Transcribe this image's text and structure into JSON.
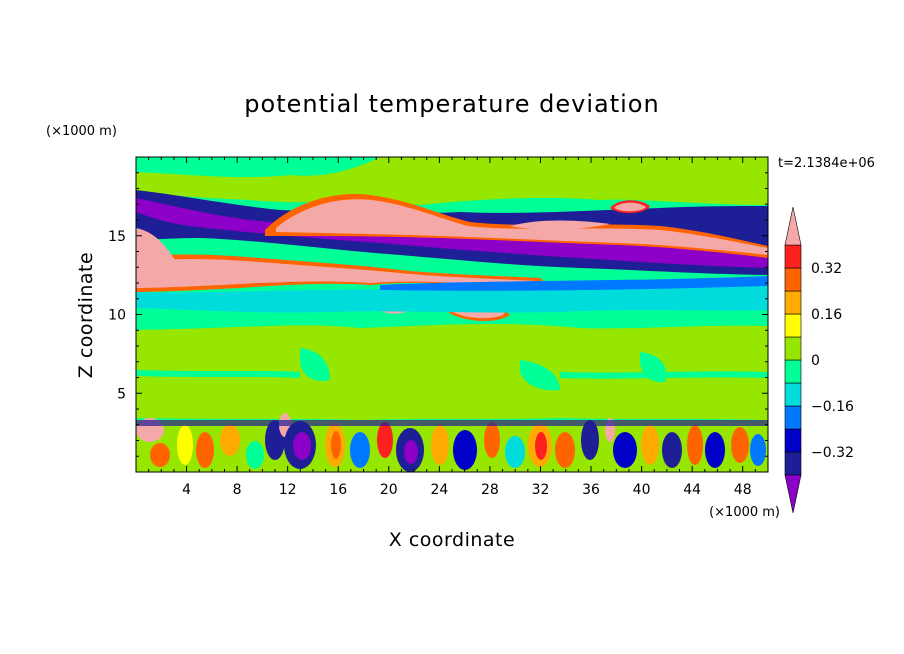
{
  "chart_data": {
    "type": "heatmap",
    "title": "potential temperature deviation",
    "xlabel": "X coordinate",
    "ylabel": "Z coordinate",
    "x_unit": "(×1000 m)",
    "y_unit": "(×1000 m)",
    "timestamp": "t=2.1384e+06",
    "xlim": [
      0,
      50
    ],
    "ylim": [
      0,
      20
    ],
    "x_ticks": [
      4,
      8,
      12,
      16,
      20,
      24,
      28,
      32,
      36,
      40,
      44,
      48
    ],
    "y_ticks": [
      5,
      10,
      15
    ],
    "colorbar": {
      "levels": [
        -0.4,
        -0.32,
        -0.24,
        -0.16,
        -0.08,
        0,
        0.08,
        0.16,
        0.24,
        0.32,
        0.4
      ],
      "tick_labels": [
        "0.32",
        "0.16",
        "0",
        "−0.16",
        "−0.32"
      ],
      "tick_values": [
        0.32,
        0.16,
        0,
        -0.16,
        -0.32
      ],
      "colors_low_to_high": [
        "#1e1e96",
        "#0000c8",
        "#0078ff",
        "#00dcdc",
        "#00ff96",
        "#96e600",
        "#ffff00",
        "#ffaa00",
        "#ff6400",
        "#ff2020"
      ],
      "below_color": "#8c00c8",
      "above_color": "#f5a8a8"
    },
    "bands": [
      {
        "z": [
          17.5,
          19.5
        ],
        "value": 0.02
      },
      {
        "z": [
          16.3,
          17.5
        ],
        "value": -0.36
      },
      {
        "z": [
          15.0,
          16.3
        ],
        "value": -0.44
      },
      {
        "z": [
          13.5,
          15.0
        ],
        "value": 0.42
      },
      {
        "z": [
          12.3,
          13.5
        ],
        "value": -0.3
      },
      {
        "z": [
          11.0,
          12.3
        ],
        "value": -0.12
      },
      {
        "z": [
          10.0,
          11.0
        ],
        "value": -0.02
      },
      {
        "z": [
          6.5,
          10.0
        ],
        "value": 0.04
      },
      {
        "z": [
          3.5,
          6.5
        ],
        "value": 0.06
      },
      {
        "z": [
          0.2,
          3.5
        ],
        "value": "turbulent"
      }
    ]
  }
}
